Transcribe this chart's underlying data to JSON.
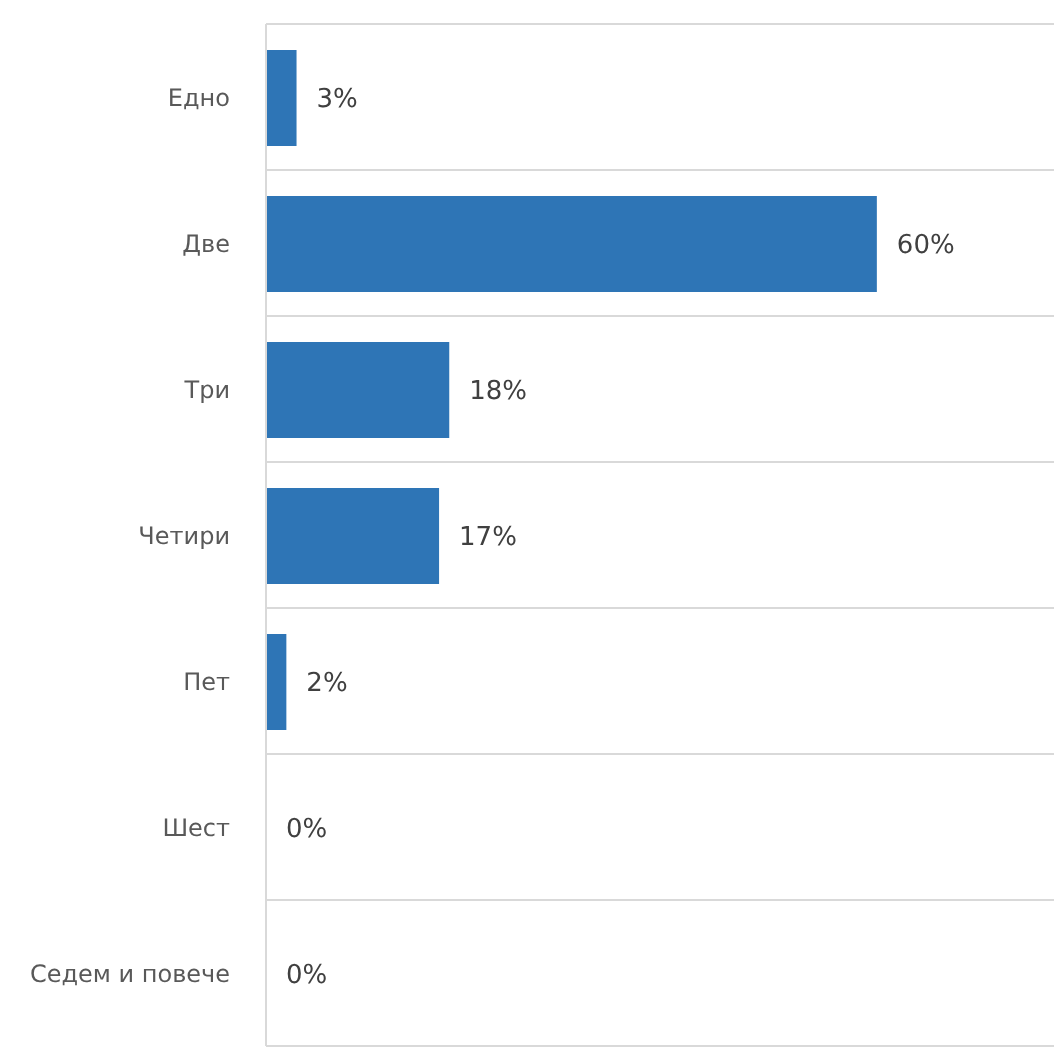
{
  "chart_data": {
    "type": "bar",
    "orientation": "horizontal",
    "categories": [
      "Едно",
      "Две",
      "Три",
      "Четири",
      "Пет",
      "Шест",
      "Седем и повече"
    ],
    "values": [
      3,
      60,
      18,
      17,
      2,
      0,
      0
    ],
    "value_labels": [
      "3%",
      "60%",
      "18%",
      "17%",
      "2%",
      "0%",
      "0%"
    ],
    "color": "#2e75b6",
    "grid": "y",
    "tick_labels": "y",
    "legend": false
  }
}
